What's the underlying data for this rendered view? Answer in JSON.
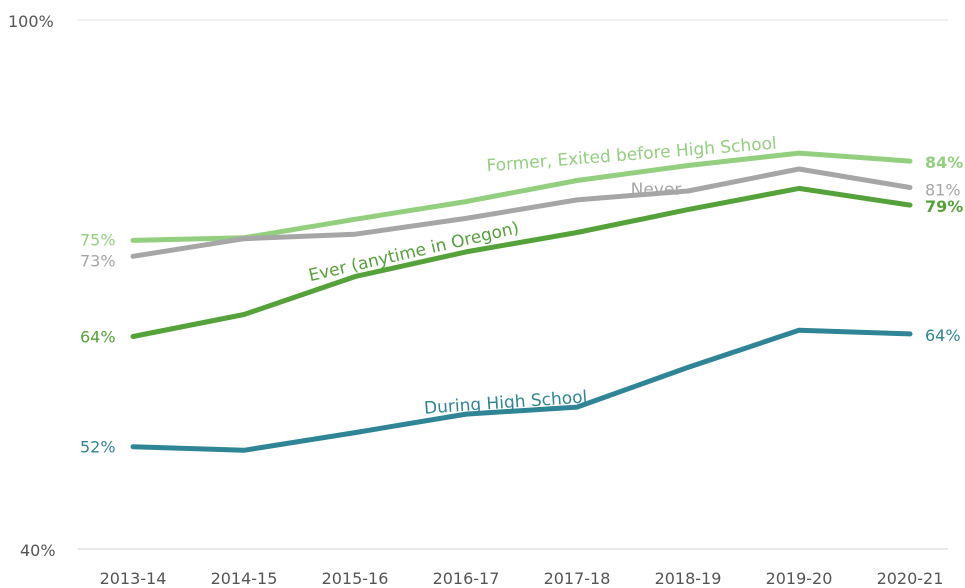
{
  "chart_data": {
    "type": "line",
    "categories": [
      "2013-14",
      "2014-15",
      "2015-16",
      "2016-17",
      "2017-18",
      "2018-19",
      "2019-20",
      "2020-21"
    ],
    "ylim": [
      40,
      100
    ],
    "y_tick_labels": [
      "100%",
      "40%"
    ],
    "grid": false,
    "legend": "none",
    "series": [
      {
        "key": "former",
        "name": "Former, Exited before High School",
        "color": "#93cf7e",
        "values": [
          75,
          75.3,
          77.4,
          79.4,
          81.8,
          83.5,
          84.9,
          84
        ],
        "start_label": "75%",
        "end_label": "84%"
      },
      {
        "key": "never",
        "name": "Never",
        "color": "#a6a6a6",
        "values": [
          73.2,
          75.2,
          75.7,
          77.5,
          79.6,
          80.6,
          83.1,
          81
        ],
        "start_label": "73%",
        "end_label": "81%"
      },
      {
        "key": "ever",
        "name": "Ever (anytime in Oregon)",
        "color": "#55a13a",
        "values": [
          64.1,
          66.6,
          70.9,
          73.7,
          75.9,
          78.5,
          80.9,
          79
        ],
        "start_label": "64%",
        "end_label": "79%"
      },
      {
        "key": "during",
        "name": "During High School",
        "color": "#2f8595",
        "values": [
          51.6,
          51.2,
          53.2,
          55.3,
          56.1,
          60.6,
          64.8,
          64.4
        ],
        "start_label": "52%",
        "end_label": "64%"
      }
    ]
  }
}
